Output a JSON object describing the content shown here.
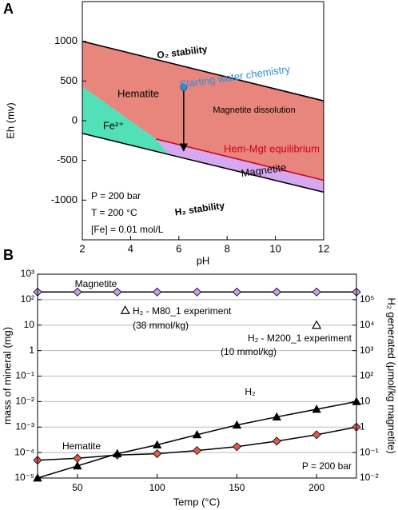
{
  "chart_data": [
    {
      "type": "region",
      "panel_label": "A",
      "x_label": "pH",
      "y_label": "Eh (mv)",
      "xlim": [
        2,
        12
      ],
      "ylim": [
        -1500,
        1500
      ],
      "xticks": [
        2,
        4,
        6,
        8,
        10,
        12
      ],
      "yticks": [
        -1000,
        -500,
        0,
        500,
        1000
      ],
      "regions": [
        {
          "name": "Hematite",
          "color": "#e8857c",
          "x": [
            2,
            12,
            12,
            5.05,
            2
          ],
          "y": [
            1000,
            250,
            -750,
            -230,
            430
          ]
        },
        {
          "name": "Fe²⁺",
          "color": "#52e0b8",
          "x": [
            2,
            5.05,
            5.54,
            2
          ],
          "y": [
            430,
            -230,
            -410,
            -160
          ]
        },
        {
          "name": "Magnetite",
          "color": "#d6a8ef",
          "x": [
            5.05,
            12,
            12,
            5.54
          ],
          "y": [
            -230,
            -750,
            -900,
            -410
          ]
        }
      ],
      "lines": [
        {
          "color": "#000000",
          "x": [
            2,
            12
          ],
          "y": [
            1000,
            250
          ]
        },
        {
          "name": "Hem-Mgt equilibrium",
          "color": "#d0021b",
          "x": [
            5.05,
            12
          ],
          "y": [
            -230,
            -750
          ]
        },
        {
          "color": "#000000",
          "x": [
            2,
            12
          ],
          "y": [
            -160,
            -900
          ]
        }
      ],
      "point": {
        "name": "Starting water chemistry",
        "color": "#2f8fd8",
        "x": 6.2,
        "y": 420
      },
      "arrow": {
        "name": "Magnetite dissolution",
        "x": 6.2,
        "y": [
          420,
          -380
        ]
      },
      "annotations": [
        "O₂ stability",
        "H₂ stability",
        "P = 200 bar",
        "T = 200 °C",
        "[Fe] = 0.01 mol/L"
      ]
    },
    {
      "type": "line",
      "panel_label": "B",
      "x_label": "Temp (°C)",
      "y_label": "mass of mineral (mg)",
      "y2_label": "H₂ generated (μmol/kg magnetite)",
      "x": [
        25,
        50,
        75,
        100,
        125,
        150,
        175,
        200,
        225
      ],
      "xlim": [
        25,
        225
      ],
      "xticks": [
        50,
        100,
        150,
        200
      ],
      "log_y": true,
      "grid": true,
      "ylim": [
        1e-05,
        1000
      ],
      "yticks": [
        {
          "value": 1e-05,
          "label": "10⁻⁵"
        },
        {
          "value": 0.0001,
          "label": "10⁻⁴"
        },
        {
          "value": 0.001,
          "label": "10⁻³"
        },
        {
          "value": 0.01,
          "label": "10⁻²"
        },
        {
          "value": 0.1,
          "label": "10⁻¹"
        },
        1,
        10,
        {
          "value": 100,
          "label": "10²"
        },
        {
          "value": 1000,
          "label": "10³"
        }
      ],
      "y2lim": [
        0.01,
        1000000
      ],
      "y2ticks": [
        {
          "value": 0.01,
          "label": "10⁻²"
        },
        {
          "value": 0.1,
          "label": "10⁻¹"
        },
        1,
        10,
        {
          "value": 100,
          "label": "10²"
        },
        {
          "value": 1000,
          "label": "10³"
        },
        {
          "value": 10000,
          "label": "10⁴"
        },
        {
          "value": 100000,
          "label": "10⁵"
        }
      ],
      "series": [
        {
          "name": "Magnetite",
          "color": "#c99cec",
          "marker": "diamond",
          "values": [
            200,
            200,
            200,
            200,
            200,
            200,
            200,
            200,
            200
          ]
        },
        {
          "name": "Hematite",
          "color": "#e2574c",
          "marker": "diamond",
          "values": [
            5e-05,
            6e-05,
            8e-05,
            9e-05,
            0.00012,
            0.00017,
            0.00028,
            0.0005,
            0.001
          ]
        },
        {
          "name": "H₂",
          "color": "#000000",
          "marker": "triangle",
          "axis": "y2",
          "values": [
            0.01,
            0.03,
            0.09,
            0.2,
            0.5,
            1.2,
            2.5,
            5,
            10
          ]
        }
      ],
      "experiments": [
        {
          "name": "H₂ - M80_1 experiment",
          "note": "(38 mmol/kg)",
          "x": 80,
          "y": 38000
        },
        {
          "name": "H₂ - M200_1 experiment",
          "note": "(10 mmol/kg)",
          "x": 200,
          "y": 10000
        }
      ],
      "annotation": "P = 200 bar"
    }
  ]
}
